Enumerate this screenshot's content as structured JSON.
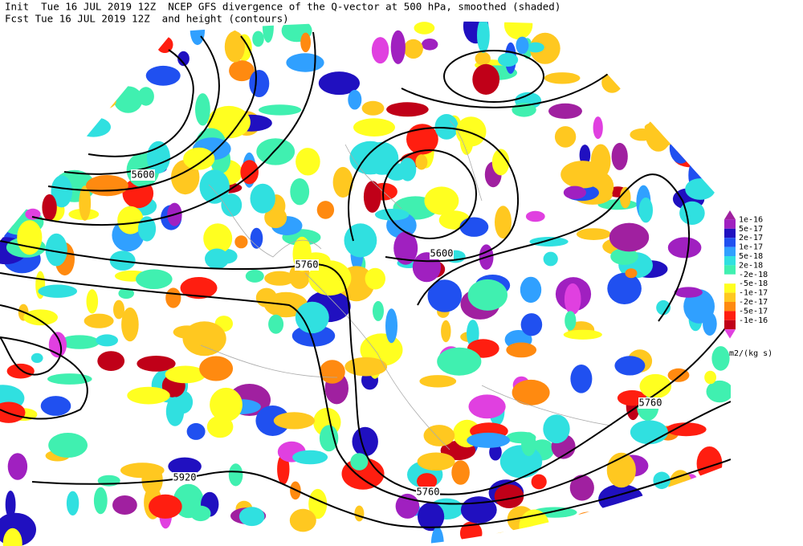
{
  "header": {
    "line1": "Init  Tue 16 JUL 2019 12Z  NCEP GFS divergence of the Q-vector at 500 hPa, smoothed (shaded)",
    "line2": "Fcst Tue 16 JUL 2019 12Z  and height (contours)"
  },
  "contour_labels": [
    "5600",
    "5760",
    "5600",
    "5760",
    "5920",
    "5760"
  ],
  "colorbar": {
    "labels": [
      "1e-16",
      "5e-17",
      "2e-17",
      "1e-17",
      "5e-18",
      "2e-18",
      "-2e-18",
      "-5e-18",
      "-1e-17",
      "-2e-17",
      "-5e-17",
      "-1e-16"
    ],
    "colors": [
      "#a020a0",
      "#a020c0",
      "#2010c0",
      "#2050f0",
      "#30a0ff",
      "#30e0e0",
      "#40f0b0",
      "#ffffff",
      "#ffff20",
      "#ffc820",
      "#ff8a10",
      "#ff1e10",
      "#c00018",
      "#e040e0"
    ],
    "unit": "m2/(kg s)"
  }
}
